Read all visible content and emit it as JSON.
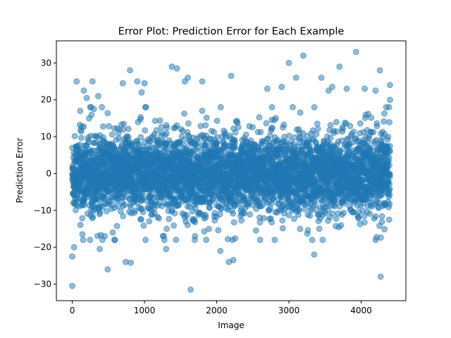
{
  "chart_data": {
    "type": "scatter",
    "title": "Error Plot: Prediction Error for Each Example",
    "xlabel": "Image",
    "ylabel": "Prediction Error",
    "xlim": [
      -220,
      4620
    ],
    "ylim": [
      -34.5,
      36
    ],
    "xticks": [
      0,
      1000,
      2000,
      3000,
      4000
    ],
    "yticks": [
      -30,
      -20,
      -10,
      0,
      10,
      20,
      30
    ],
    "grid": false,
    "legend": "none",
    "marker_color": "#1f77b4",
    "marker_alpha": 0.5,
    "n_points_approx": 4400,
    "bulk_distribution": {
      "description": "dense band of points centered on 0 for every image index",
      "x_range": [
        0,
        4400
      ],
      "core_band": [
        -8,
        8
      ],
      "typical_spread_std": 5
    },
    "series": [
      {
        "name": "Prediction Error (notable outliers)",
        "points": [
          [
            0,
            -30.5
          ],
          [
            0,
            -22.5
          ],
          [
            25,
            -20
          ],
          [
            60,
            25
          ],
          [
            110,
            17
          ],
          [
            140,
            -16.5
          ],
          [
            150,
            -18
          ],
          [
            160,
            22.5
          ],
          [
            200,
            20.5
          ],
          [
            280,
            25
          ],
          [
            300,
            17.5
          ],
          [
            360,
            21
          ],
          [
            380,
            -20.5
          ],
          [
            450,
            -17
          ],
          [
            490,
            -26
          ],
          [
            560,
            -16
          ],
          [
            700,
            24.5
          ],
          [
            740,
            -24
          ],
          [
            800,
            28
          ],
          [
            810,
            -24.2
          ],
          [
            900,
            25
          ],
          [
            960,
            22
          ],
          [
            1000,
            24.5
          ],
          [
            1300,
            -20.5
          ],
          [
            1380,
            29
          ],
          [
            1450,
            28.5
          ],
          [
            1560,
            25
          ],
          [
            1600,
            26
          ],
          [
            1640,
            -31.5
          ],
          [
            1700,
            -17
          ],
          [
            1800,
            25
          ],
          [
            2050,
            -21
          ],
          [
            2170,
            -24
          ],
          [
            2200,
            26.5
          ],
          [
            2230,
            -23.5
          ],
          [
            2700,
            23
          ],
          [
            2900,
            23.5
          ],
          [
            3000,
            30
          ],
          [
            3100,
            26
          ],
          [
            3200,
            32
          ],
          [
            3350,
            -22
          ],
          [
            3450,
            26
          ],
          [
            3550,
            22.5
          ],
          [
            3600,
            23.5
          ],
          [
            3700,
            29
          ],
          [
            3800,
            23
          ],
          [
            3930,
            33
          ],
          [
            4050,
            23
          ],
          [
            4200,
            22.5
          ],
          [
            4260,
            28
          ],
          [
            4270,
            -28
          ],
          [
            4400,
            24
          ],
          [
            4400,
            20
          ]
        ]
      }
    ]
  }
}
